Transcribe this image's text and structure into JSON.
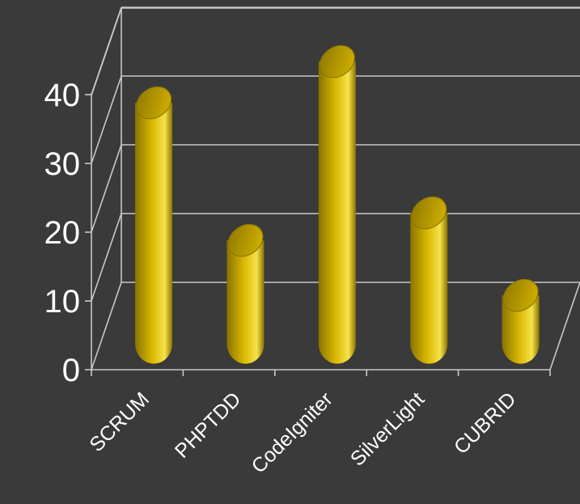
{
  "chart_data": {
    "type": "bar",
    "style": "3d-cylinder",
    "categories": [
      "SCRUM",
      "PHPTDD",
      "CodeIgniter",
      "SilverLight",
      "CUBRID"
    ],
    "values": [
      35,
      15,
      41,
      19,
      7
    ],
    "ylim": [
      0,
      40
    ],
    "yticks": [
      0,
      10,
      20,
      30,
      40
    ],
    "grid": true,
    "legend": "none",
    "colors": {
      "background": "#3a3a3a",
      "bar": "#d8b800",
      "bar_dark": "#8a7300",
      "bar_light": "#f6e24a",
      "gridline": "#c8c8c8",
      "text": "#ffffff"
    }
  }
}
